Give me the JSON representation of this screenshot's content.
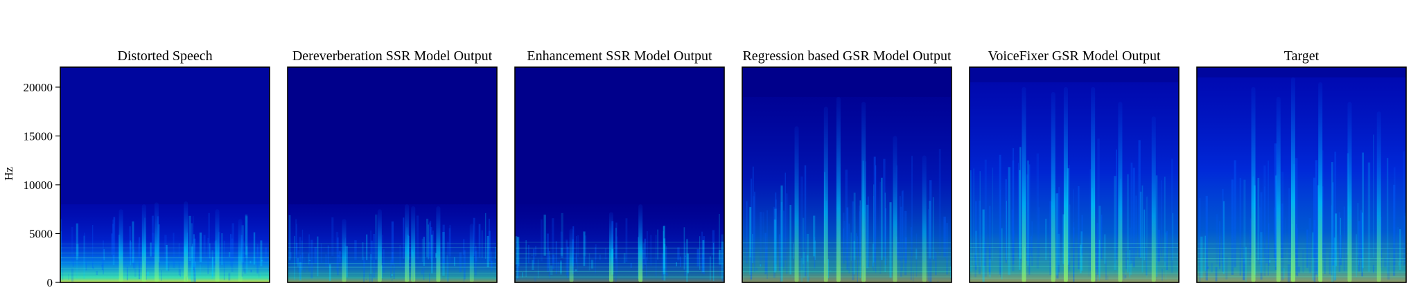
{
  "chart_data": {
    "type": "heatmap",
    "ylabel": "Hz",
    "ylim": [
      0,
      22050
    ],
    "yticks": [
      0,
      5000,
      10000,
      15000,
      20000
    ],
    "ytick_labels": [
      "0",
      "5000",
      "10000",
      "15000",
      "20000"
    ],
    "colormap": "jet",
    "colors": {
      "background": "#00008b",
      "low": "#0000c8",
      "mid": "#00c8ff",
      "high": "#ffff00"
    },
    "panels": [
      {
        "title": "Distorted Speech",
        "bandwidth_hz": 8000,
        "low_energy": 0.85,
        "upper_energy": 0.25,
        "noise_floor": 0.12,
        "streaks": [
          {
            "t": 0.29,
            "top_hz": 7500,
            "level": 0.55
          },
          {
            "t": 0.4,
            "top_hz": 8000,
            "level": 0.6
          },
          {
            "t": 0.46,
            "top_hz": 8200,
            "level": 0.55
          },
          {
            "t": 0.6,
            "top_hz": 8300,
            "level": 0.65
          },
          {
            "t": 0.75,
            "top_hz": 7500,
            "level": 0.5
          },
          {
            "t": 0.86,
            "top_hz": 6500,
            "level": 0.4
          }
        ]
      },
      {
        "title": "Dereverberation SSR Model Output",
        "bandwidth_hz": 8000,
        "low_energy": 0.6,
        "upper_energy": 0.2,
        "noise_floor": 0.0,
        "streaks": [
          {
            "t": 0.27,
            "top_hz": 6500,
            "level": 0.5
          },
          {
            "t": 0.44,
            "top_hz": 7500,
            "level": 0.55
          },
          {
            "t": 0.57,
            "top_hz": 8000,
            "level": 0.6
          },
          {
            "t": 0.6,
            "top_hz": 7800,
            "level": 0.55
          },
          {
            "t": 0.72,
            "top_hz": 7800,
            "level": 0.55
          },
          {
            "t": 0.88,
            "top_hz": 6000,
            "level": 0.4
          }
        ]
      },
      {
        "title": "Enhancement SSR Model Output",
        "bandwidth_hz": 8000,
        "low_energy": 0.45,
        "upper_energy": 0.05,
        "noise_floor": 0.0,
        "streaks": [
          {
            "t": 0.27,
            "top_hz": 5500,
            "level": 0.45
          },
          {
            "t": 0.46,
            "top_hz": 7200,
            "level": 0.6
          },
          {
            "t": 0.6,
            "top_hz": 8000,
            "level": 0.65
          }
        ]
      },
      {
        "title": "Regression based GSR Model Output",
        "bandwidth_hz": 19000,
        "low_energy": 0.55,
        "upper_energy": 0.15,
        "noise_floor": 0.0,
        "streaks": [
          {
            "t": 0.26,
            "top_hz": 16000,
            "level": 0.5
          },
          {
            "t": 0.4,
            "top_hz": 18000,
            "level": 0.55
          },
          {
            "t": 0.46,
            "top_hz": 19000,
            "level": 0.6
          },
          {
            "t": 0.58,
            "top_hz": 18500,
            "level": 0.6
          },
          {
            "t": 0.73,
            "top_hz": 15000,
            "level": 0.5
          },
          {
            "t": 0.87,
            "top_hz": 13000,
            "level": 0.45
          }
        ]
      },
      {
        "title": "VoiceFixer GSR Model Output",
        "bandwidth_hz": 20500,
        "low_energy": 0.6,
        "upper_energy": 0.35,
        "noise_floor": 0.1,
        "streaks": [
          {
            "t": 0.26,
            "top_hz": 20000,
            "level": 0.65
          },
          {
            "t": 0.4,
            "top_hz": 19500,
            "level": 0.6
          },
          {
            "t": 0.46,
            "top_hz": 20000,
            "level": 0.7
          },
          {
            "t": 0.59,
            "top_hz": 20000,
            "level": 0.7
          },
          {
            "t": 0.72,
            "top_hz": 18500,
            "level": 0.55
          },
          {
            "t": 0.88,
            "top_hz": 17000,
            "level": 0.5
          }
        ]
      },
      {
        "title": "Target",
        "bandwidth_hz": 21000,
        "low_energy": 0.6,
        "upper_energy": 0.4,
        "noise_floor": 0.12,
        "streaks": [
          {
            "t": 0.27,
            "top_hz": 20000,
            "level": 0.6
          },
          {
            "t": 0.39,
            "top_hz": 19000,
            "level": 0.6
          },
          {
            "t": 0.46,
            "top_hz": 21000,
            "level": 0.7
          },
          {
            "t": 0.59,
            "top_hz": 20500,
            "level": 0.7
          },
          {
            "t": 0.73,
            "top_hz": 18500,
            "level": 0.55
          },
          {
            "t": 0.87,
            "top_hz": 17500,
            "level": 0.5
          }
        ]
      }
    ]
  }
}
